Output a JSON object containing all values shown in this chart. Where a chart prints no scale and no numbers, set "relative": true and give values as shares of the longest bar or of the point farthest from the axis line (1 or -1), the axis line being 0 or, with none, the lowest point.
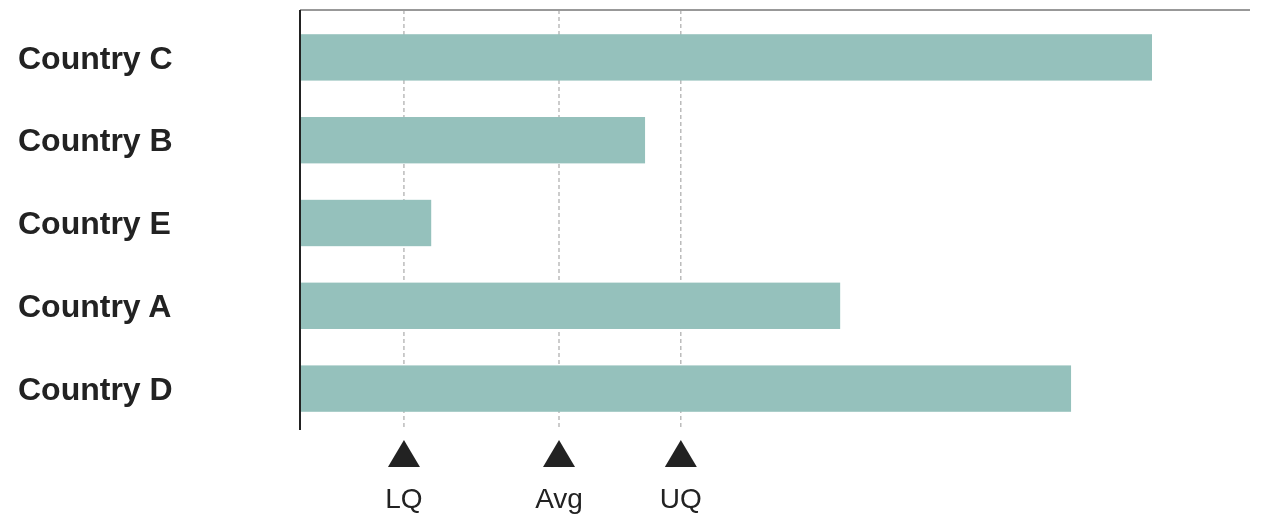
{
  "chart_data": {
    "type": "bar",
    "orientation": "horizontal",
    "relative": true,
    "categories": [
      "Country C",
      "Country B",
      "Country E",
      "Country A",
      "Country D"
    ],
    "values": [
      1,
      0.405,
      0.154,
      0.634,
      0.905
    ],
    "color": "#95c1bc",
    "ref_lines": [
      {
        "axis": "x",
        "value": 0.122,
        "label": "LQ",
        "color": "#999999",
        "line_style": "dashed"
      },
      {
        "axis": "x",
        "value": 0.304,
        "label": "Avg",
        "color": "#999999",
        "line_style": "dashed"
      },
      {
        "axis": "x",
        "value": 0.447,
        "label": "UQ",
        "color": "#999999",
        "line_style": "dashed"
      }
    ]
  }
}
